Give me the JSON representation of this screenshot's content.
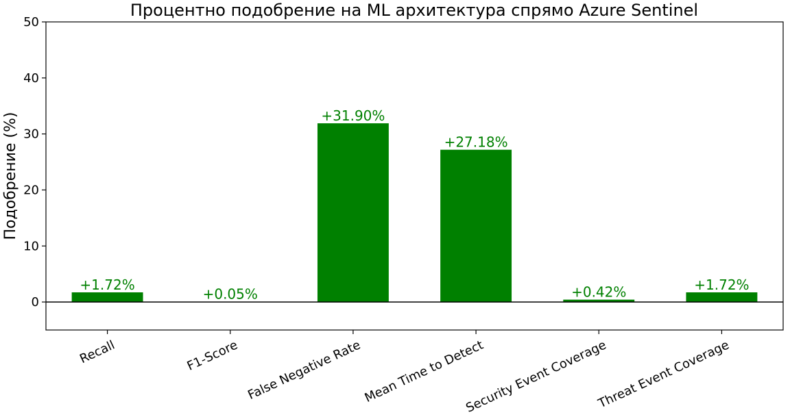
{
  "chart_data": {
    "type": "bar",
    "title": "Процентно подобрение на ML архитектура спрямо Azure Sentinel",
    "xlabel": "",
    "ylabel": "Подобрение (%)",
    "categories": [
      "Recall",
      "F1-Score",
      "False Negative Rate",
      "Mean Time to Detect",
      "Security Event Coverage",
      "Threat Event Coverage"
    ],
    "values": [
      1.72,
      0.05,
      31.9,
      27.18,
      0.42,
      1.72
    ],
    "value_labels": [
      "+1.72%",
      "+0.05%",
      "+31.90%",
      "+27.18%",
      "+0.42%",
      "+1.72%"
    ],
    "ylim": [
      -5,
      50
    ],
    "yticks": [
      0,
      10,
      20,
      30,
      40,
      50
    ],
    "ytick_labels": [
      "0",
      "10",
      "20",
      "30",
      "40",
      "50"
    ],
    "grid": false,
    "zero_line": true,
    "bar_color": "#008000",
    "label_color": "#008000"
  }
}
